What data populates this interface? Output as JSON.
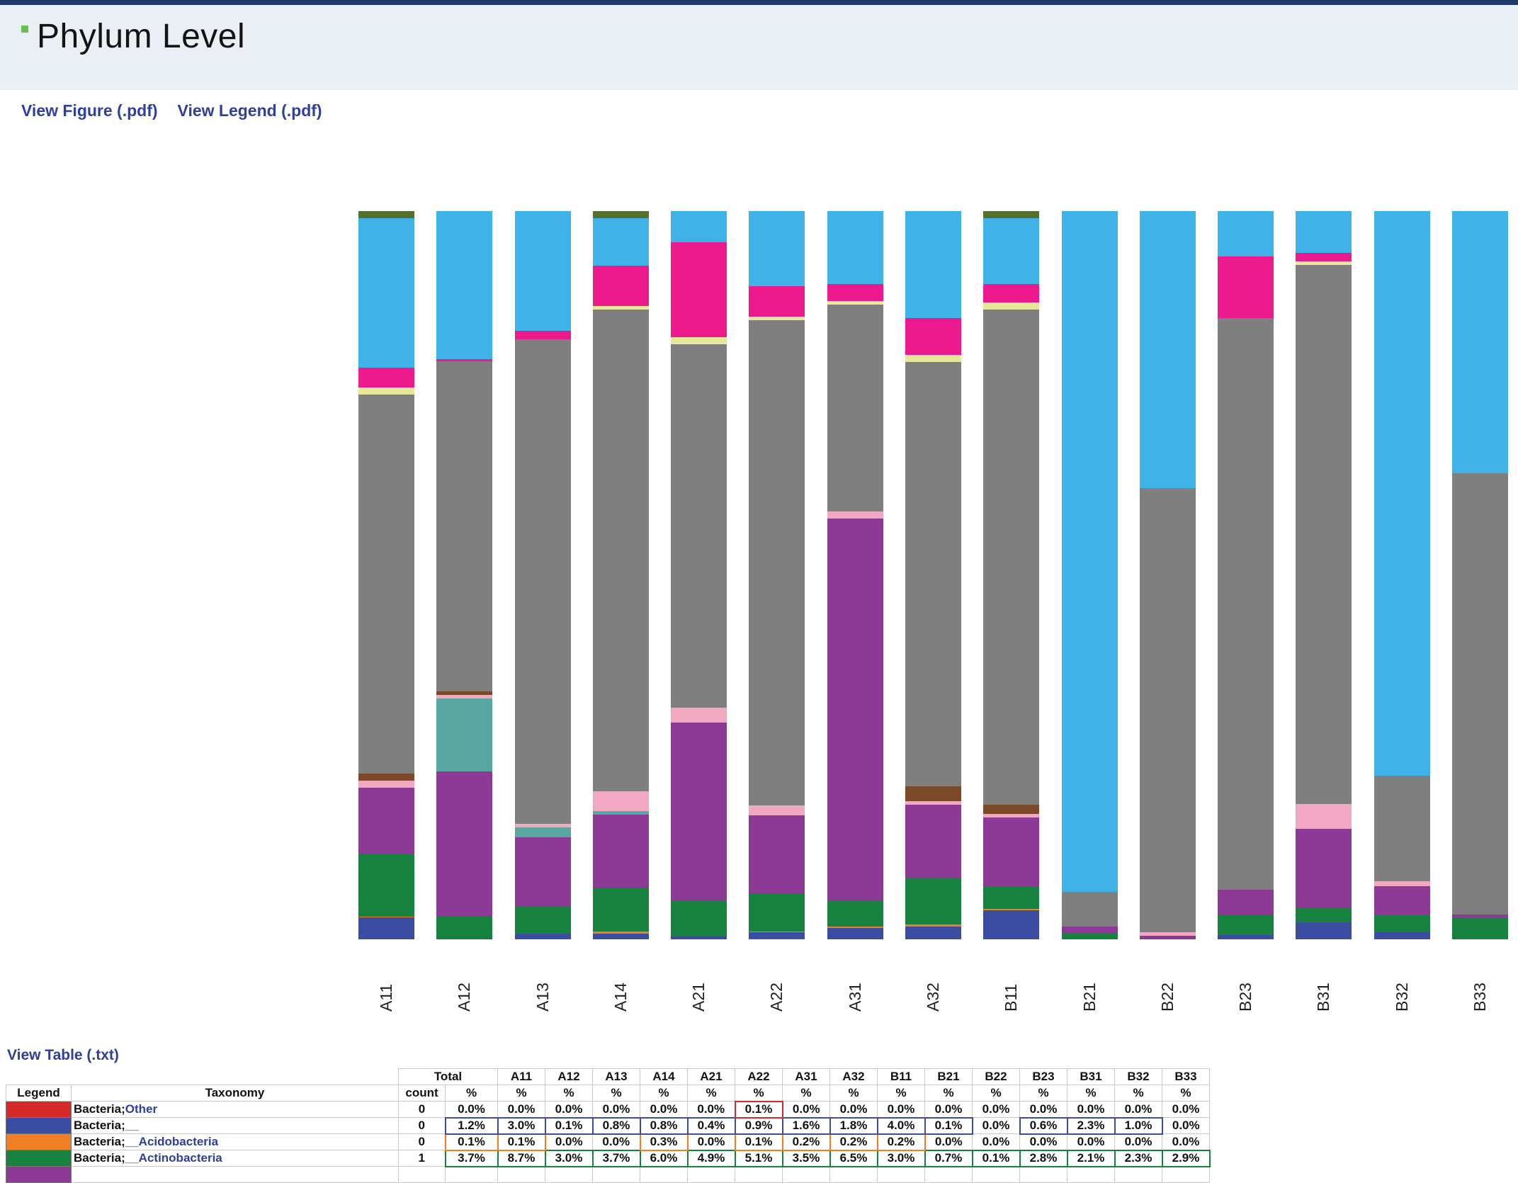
{
  "page": {
    "title": "Phylum Level"
  },
  "links": {
    "figure": "View Figure (.pdf)",
    "legend": "View Legend (.pdf)",
    "table": "View Table (.txt)"
  },
  "colors": {
    "header_band": "#e9eff4",
    "top_strip": "#1f3864",
    "link_blue": "#2e3f9e",
    "bullet_green": "#6abf4b"
  },
  "chart_data": {
    "type": "bar",
    "subtype": "stacked-vertical",
    "title": "Phylum Level",
    "xlabel": "",
    "ylabel": "",
    "ylim": [
      0,
      100
    ],
    "grid": false,
    "legend_position": "external-pdf",
    "categories": [
      "A11",
      "A12",
      "A13",
      "A14",
      "A21",
      "A22",
      "A31",
      "A32",
      "B11",
      "B21",
      "B22",
      "B23",
      "B31",
      "B32",
      "B33"
    ],
    "series": [
      {
        "name": "red",
        "color": "#d42a2a",
        "values": [
          0,
          0,
          0,
          0,
          0,
          0.1,
          0,
          0,
          0,
          0,
          0,
          0,
          0,
          0,
          0
        ]
      },
      {
        "name": "royal-blue",
        "color": "#3b4da0",
        "values": [
          3.0,
          0.1,
          0.8,
          0.8,
          0.4,
          0.9,
          1.6,
          1.8,
          4.0,
          0.1,
          0,
          0.6,
          2.3,
          1.0,
          0
        ]
      },
      {
        "name": "orange",
        "color": "#f07f23",
        "values": [
          0.1,
          0,
          0,
          0.3,
          0,
          0.1,
          0.2,
          0.2,
          0.2,
          0,
          0,
          0,
          0,
          0,
          0
        ]
      },
      {
        "name": "green",
        "color": "#17813f",
        "values": [
          8.7,
          3.0,
          3.7,
          6.0,
          4.9,
          5.1,
          3.5,
          6.5,
          3.0,
          0.7,
          0.1,
          2.8,
          2.1,
          2.3,
          2.9
        ]
      },
      {
        "name": "purple",
        "color": "#8d3a96",
        "values": [
          9.0,
          20.0,
          9.5,
          10.0,
          24.5,
          10.8,
          52.5,
          10.0,
          9.5,
          1.0,
          0.4,
          3.4,
          10.8,
          4.0,
          0.5
        ]
      },
      {
        "name": "teal",
        "color": "#5aa6a0",
        "values": [
          0,
          10.0,
          1.4,
          0.5,
          0,
          0,
          0,
          0,
          0,
          0,
          0,
          0,
          0,
          0,
          0
        ]
      },
      {
        "name": "pink",
        "color": "#f2a7c3",
        "values": [
          1.0,
          0.5,
          0.5,
          2.7,
          2.0,
          1.4,
          1.0,
          0.5,
          0.5,
          0,
          0.5,
          0,
          3.4,
          0.7,
          0
        ]
      },
      {
        "name": "brown",
        "color": "#7a4a28",
        "values": [
          1.0,
          0.5,
          0,
          0,
          0,
          0,
          0,
          2.0,
          1.3,
          0,
          0,
          0,
          0,
          0,
          0
        ]
      },
      {
        "name": "gray",
        "color": "#7f7f7f",
        "values": [
          52.0,
          45.3,
          66.5,
          66.2,
          49.9,
          66.6,
          28.4,
          58.3,
          68.0,
          4.7,
          61.0,
          78.5,
          74.0,
          14.5,
          60.6
        ]
      },
      {
        "name": "khaki",
        "color": "#e8e89a",
        "values": [
          1.0,
          0,
          0,
          0.5,
          1.0,
          0.5,
          0.5,
          1.0,
          1.0,
          0,
          0,
          0,
          0.5,
          0,
          0
        ]
      },
      {
        "name": "magenta",
        "color": "#ec1a8d",
        "values": [
          2.7,
          0.3,
          1.2,
          5.5,
          13.0,
          4.2,
          2.3,
          5.0,
          2.5,
          0,
          0,
          8.5,
          1.2,
          0,
          0
        ]
      },
      {
        "name": "sky-blue",
        "color": "#3fb3e8",
        "values": [
          20.5,
          20.3,
          16.4,
          6.5,
          4.3,
          10.3,
          10.0,
          14.7,
          9.0,
          93.5,
          38.0,
          6.2,
          5.7,
          77.5,
          36.0
        ]
      },
      {
        "name": "olive",
        "color": "#55702c",
        "values": [
          1.0,
          0,
          0,
          1.0,
          0,
          0,
          0,
          0,
          1.0,
          0,
          0,
          0,
          0,
          0,
          0
        ]
      }
    ]
  },
  "table": {
    "header": {
      "legend_label": "Legend",
      "taxonomy_label": "Taxonomy",
      "total_label": "Total",
      "count_label": "count",
      "percent_label": "%"
    },
    "columns": [
      "A11",
      "A12",
      "A13",
      "A14",
      "A21",
      "A22",
      "A31",
      "A32",
      "B11",
      "B21",
      "B22",
      "B23",
      "B31",
      "B32",
      "B33"
    ],
    "rows": [
      {
        "color": "#d42a2a",
        "prefix": "Bacteria;",
        "name": "Other",
        "count": "0",
        "total": "0.0%",
        "values": [
          "0.0%",
          "0.0%",
          "0.0%",
          "0.0%",
          "0.0%",
          "0.1%",
          "0.0%",
          "0.0%",
          "0.0%",
          "0.0%",
          "0.0%",
          "0.0%",
          "0.0%",
          "0.0%",
          "0.0%"
        ]
      },
      {
        "color": "#3b4da0",
        "prefix": "Bacteria;",
        "name": "__",
        "count": "0",
        "total": "1.2%",
        "values": [
          "3.0%",
          "0.1%",
          "0.8%",
          "0.8%",
          "0.4%",
          "0.9%",
          "1.6%",
          "1.8%",
          "4.0%",
          "0.1%",
          "0.0%",
          "0.6%",
          "2.3%",
          "1.0%",
          "0.0%"
        ]
      },
      {
        "color": "#f07f23",
        "prefix": "Bacteria;",
        "name": "__Acidobacteria",
        "count": "0",
        "total": "0.1%",
        "values": [
          "0.1%",
          "0.0%",
          "0.0%",
          "0.3%",
          "0.0%",
          "0.1%",
          "0.2%",
          "0.2%",
          "0.2%",
          "0.0%",
          "0.0%",
          "0.0%",
          "0.0%",
          "0.0%",
          "0.0%"
        ]
      },
      {
        "color": "#17813f",
        "prefix": "Bacteria;",
        "name": "__Actinobacteria",
        "count": "1",
        "total": "3.7%",
        "values": [
          "8.7%",
          "3.0%",
          "3.7%",
          "6.0%",
          "4.9%",
          "5.1%",
          "3.5%",
          "6.5%",
          "3.0%",
          "0.7%",
          "0.1%",
          "2.8%",
          "2.1%",
          "2.3%",
          "2.9%"
        ]
      },
      {
        "color": "#8d3a96",
        "prefix": "",
        "name": "",
        "count": "",
        "total": "",
        "values": [
          "",
          "",
          "",
          "",
          "",
          "",
          "",
          "",
          "",
          "",
          "",
          "",
          "",
          "",
          ""
        ]
      }
    ]
  }
}
